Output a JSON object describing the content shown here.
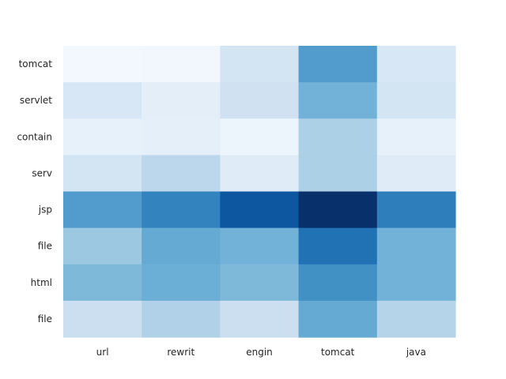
{
  "chart_data": {
    "type": "heatmap",
    "title": "",
    "xlabel": "",
    "ylabel": "",
    "colormap": "Blues",
    "grid": false,
    "legend": "none",
    "x_categories": [
      "url",
      "rewrit",
      "engin",
      "tomcat",
      "java"
    ],
    "y_categories": [
      "tomcat",
      "servlet",
      "contain",
      "serv",
      "jsp",
      "file",
      "html",
      "file"
    ],
    "values": [
      [
        0.02,
        0.03,
        0.18,
        0.58,
        0.16
      ],
      [
        0.16,
        0.1,
        0.2,
        0.48,
        0.18
      ],
      [
        0.08,
        0.09,
        0.05,
        0.33,
        0.08
      ],
      [
        0.18,
        0.28,
        0.12,
        0.33,
        0.12
      ],
      [
        0.58,
        0.68,
        0.85,
        1.0,
        0.7
      ],
      [
        0.38,
        0.52,
        0.48,
        0.75,
        0.48
      ],
      [
        0.45,
        0.5,
        0.45,
        0.63,
        0.48
      ],
      [
        0.22,
        0.32,
        0.22,
        0.52,
        0.3
      ]
    ]
  }
}
